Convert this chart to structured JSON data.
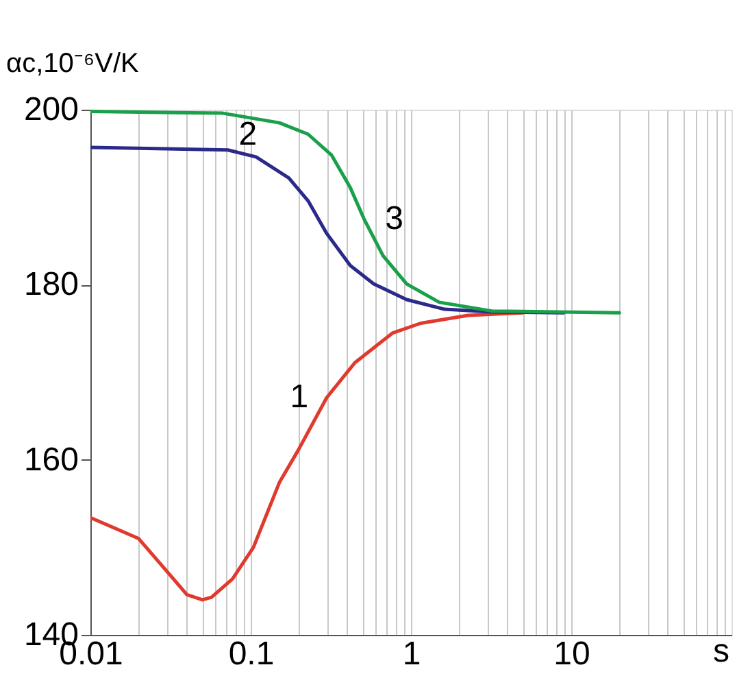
{
  "chart_data": {
    "type": "line",
    "xlabel": "s",
    "ylabel": "αc,10⁻⁶V/K",
    "log": "x",
    "grid": "x",
    "legend": false,
    "line_style": "solid",
    "marker": "none",
    "xlim": [
      0.01,
      100
    ],
    "ylim": [
      140,
      200
    ],
    "xticks": [
      0.01,
      {
        "value": 0.02,
        "label": null
      },
      {
        "value": 0.03,
        "label": null
      },
      {
        "value": 0.04,
        "label": null
      },
      {
        "value": 0.05,
        "label": null
      },
      {
        "value": 0.06,
        "label": null
      },
      {
        "value": 0.07,
        "label": null
      },
      {
        "value": 0.08,
        "label": null
      },
      {
        "value": 0.09,
        "label": null
      },
      0.1,
      {
        "value": 0.2,
        "label": null
      },
      {
        "value": 0.3,
        "label": null
      },
      {
        "value": 0.4,
        "label": null
      },
      {
        "value": 0.5,
        "label": null
      },
      {
        "value": 0.6,
        "label": null
      },
      {
        "value": 0.7,
        "label": null
      },
      {
        "value": 0.8,
        "label": null
      },
      {
        "value": 0.9,
        "label": null
      },
      1,
      {
        "value": 2,
        "label": null
      },
      {
        "value": 3,
        "label": null
      },
      {
        "value": 4,
        "label": null
      },
      {
        "value": 5,
        "label": null
      },
      {
        "value": 6,
        "label": null
      },
      {
        "value": 7,
        "label": null
      },
      {
        "value": 8,
        "label": null
      },
      {
        "value": 9,
        "label": null
      },
      10,
      {
        "value": 20,
        "label": null
      },
      {
        "value": 30,
        "label": null
      },
      {
        "value": 40,
        "label": null
      },
      {
        "value": 50,
        "label": null
      },
      {
        "value": 60,
        "label": null
      },
      {
        "value": 70,
        "label": null
      },
      {
        "value": 80,
        "label": null
      },
      {
        "value": 90,
        "label": null
      }
    ],
    "yticks": [
      140,
      160,
      180,
      200
    ],
    "series": [
      {
        "name": "1",
        "color": "#e03a2e",
        "x": [
          0.01,
          0.02,
          0.04,
          0.05,
          0.057,
          0.077,
          0.104,
          0.151,
          0.198,
          0.298,
          0.447,
          0.77,
          1.15,
          2.27,
          5
        ],
        "values": [
          153.4,
          151.0,
          144.6,
          144.0,
          144.3,
          146.4,
          150.0,
          157.4,
          161.1,
          167.1,
          171.1,
          174.5,
          175.6,
          176.5,
          176.8
        ]
      },
      {
        "name": "2",
        "color": "#2b2a8a",
        "x": [
          0.01,
          0.072,
          0.108,
          0.173,
          0.228,
          0.297,
          0.418,
          0.585,
          0.94,
          1.62,
          3.2,
          9
        ],
        "values": [
          195.7,
          195.4,
          194.6,
          192.2,
          189.6,
          185.9,
          182.2,
          180.1,
          178.3,
          177.2,
          176.9,
          176.8
        ]
      },
      {
        "name": "3",
        "color": "#1aa04a",
        "x": [
          0.01,
          0.067,
          0.151,
          0.228,
          0.32,
          0.418,
          0.51,
          0.67,
          0.94,
          1.5,
          3.2,
          20
        ],
        "values": [
          199.8,
          199.6,
          198.5,
          197.2,
          194.8,
          191.1,
          187.5,
          183.3,
          180.1,
          178.0,
          177.0,
          176.8
        ]
      }
    ]
  }
}
